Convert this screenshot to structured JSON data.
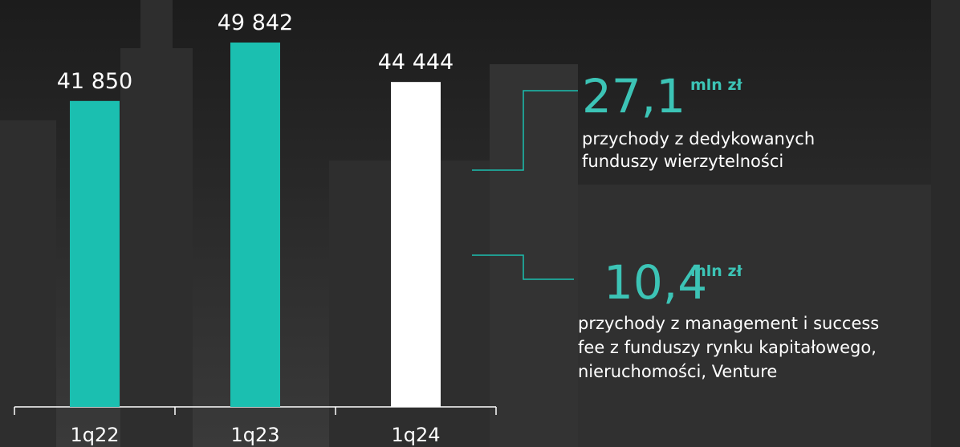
{
  "chart_data": {
    "type": "bar",
    "categories": [
      "1q22",
      "1q23",
      "1q24"
    ],
    "values": [
      41850,
      49842,
      44444
    ],
    "value_labels": [
      "41 850",
      "49 842",
      "44 444"
    ],
    "colors": [
      "#1bbfb0",
      "#1bbfb0",
      "#ffffff"
    ]
  },
  "annotations": [
    {
      "value": "27,1",
      "unit": "mln zł",
      "lines": [
        "przychody z dedykowanych",
        "funduszy wierzytelności"
      ]
    },
    {
      "value": "10,4",
      "unit": "mln zł",
      "lines": [
        "przychody z management i success",
        "fee z funduszy rynku kapitałowego,",
        "nieruchomości, Venture"
      ]
    }
  ]
}
